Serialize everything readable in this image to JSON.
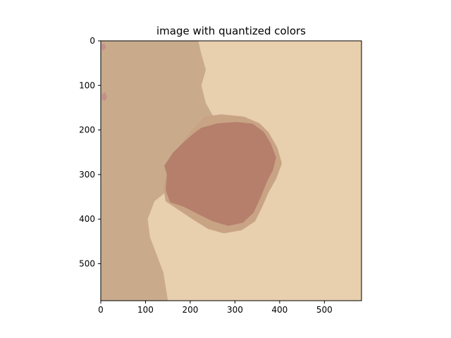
{
  "chart_data": {
    "type": "heatmap",
    "title": "image with quantized colors",
    "xlabel": "",
    "ylabel": "",
    "xlim": [
      0,
      583
    ],
    "ylim": [
      583,
      0
    ],
    "x_ticks": [
      0,
      100,
      200,
      300,
      400,
      500
    ],
    "y_ticks": [
      0,
      100,
      200,
      300,
      400,
      500
    ],
    "x_tick_labels": [
      "0",
      "100",
      "200",
      "300",
      "400",
      "500"
    ],
    "y_tick_labels": [
      "0",
      "100",
      "200",
      "300",
      "400",
      "500"
    ],
    "grid": false,
    "palette": {
      "background_light": "#e8cfae",
      "background_mid": "#c9ab8c",
      "lesion_border": "#c8a384",
      "lesion_core": "#b57f6c",
      "speckle_red": "#c4918a"
    },
    "regions": [
      {
        "color_key": "background_mid",
        "polygon": [
          [
            0,
            0
          ],
          [
            218,
            0
          ],
          [
            225,
            30
          ],
          [
            235,
            65
          ],
          [
            225,
            100
          ],
          [
            235,
            140
          ],
          [
            255,
            175
          ],
          [
            245,
            215
          ],
          [
            225,
            255
          ],
          [
            205,
            290
          ],
          [
            175,
            315
          ],
          [
            120,
            360
          ],
          [
            105,
            400
          ],
          [
            110,
            440
          ],
          [
            125,
            480
          ],
          [
            140,
            520
          ],
          [
            150,
            583
          ],
          [
            0,
            583
          ]
        ]
      },
      {
        "color_key": "lesion_border",
        "polygon": [
          [
            232,
            170
          ],
          [
            270,
            165
          ],
          [
            320,
            170
          ],
          [
            355,
            185
          ],
          [
            375,
            205
          ],
          [
            395,
            240
          ],
          [
            405,
            275
          ],
          [
            392,
            310
          ],
          [
            375,
            340
          ],
          [
            360,
            375
          ],
          [
            345,
            405
          ],
          [
            315,
            425
          ],
          [
            275,
            432
          ],
          [
            240,
            422
          ],
          [
            205,
            400
          ],
          [
            175,
            380
          ],
          [
            145,
            360
          ],
          [
            140,
            330
          ],
          [
            148,
            290
          ],
          [
            165,
            250
          ],
          [
            195,
            210
          ]
        ]
      },
      {
        "color_key": "lesion_core",
        "polygon": [
          [
            225,
            195
          ],
          [
            262,
            185
          ],
          [
            305,
            182
          ],
          [
            340,
            186
          ],
          [
            365,
            205
          ],
          [
            380,
            230
          ],
          [
            392,
            262
          ],
          [
            385,
            290
          ],
          [
            372,
            315
          ],
          [
            358,
            350
          ],
          [
            342,
            385
          ],
          [
            318,
            408
          ],
          [
            285,
            415
          ],
          [
            250,
            405
          ],
          [
            220,
            390
          ],
          [
            185,
            372
          ],
          [
            155,
            362
          ],
          [
            145,
            335
          ],
          [
            148,
            300
          ],
          [
            142,
            280
          ],
          [
            162,
            250
          ],
          [
            188,
            225
          ],
          [
            205,
            210
          ]
        ]
      },
      {
        "color_key": "background_light",
        "polygon": [
          [
            418,
            85
          ],
          [
            428,
            82
          ],
          [
            438,
            90
          ],
          [
            440,
            100
          ],
          [
            430,
            105
          ],
          [
            420,
            98
          ]
        ]
      },
      {
        "color_key": "speckle_red",
        "polygon": [
          [
            2,
            120
          ],
          [
            10,
            115
          ],
          [
            14,
            125
          ],
          [
            10,
            135
          ],
          [
            2,
            132
          ]
        ]
      },
      {
        "color_key": "speckle_red",
        "polygon": [
          [
            2,
            8
          ],
          [
            8,
            5
          ],
          [
            12,
            15
          ],
          [
            6,
            22
          ],
          [
            2,
            18
          ]
        ]
      }
    ]
  }
}
